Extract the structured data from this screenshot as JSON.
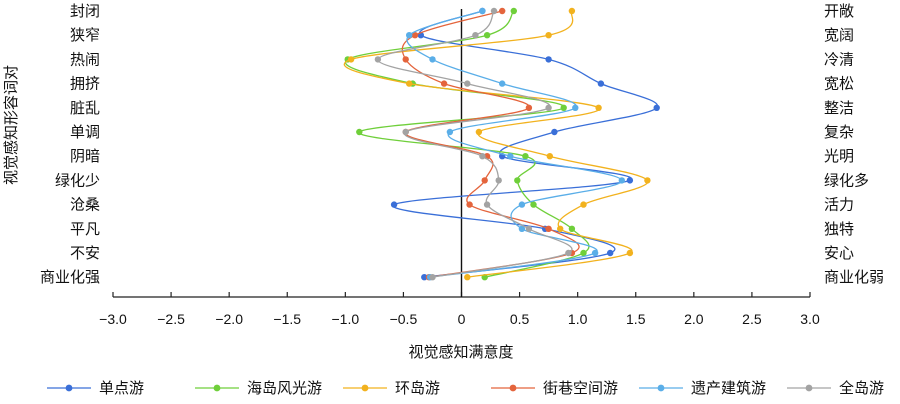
{
  "chart_data": {
    "type": "line",
    "xlabel": "视觉感知满意度",
    "ylabel": "视觉感知形容词对",
    "xlim": [
      -3.0,
      3.0
    ],
    "xticks": [
      "−3.0",
      "−2.5",
      "−2.0",
      "−1.5",
      "−1.0",
      "−0.5",
      "0",
      "0.5",
      "1.0",
      "1.5",
      "2.0",
      "2.5",
      "3.0"
    ],
    "xtick_values": [
      -3.0,
      -2.5,
      -2.0,
      -1.5,
      -1.0,
      -0.5,
      0,
      0.5,
      1.0,
      1.5,
      2.0,
      2.5,
      3.0
    ],
    "left_labels": [
      "封闭",
      "狭窄",
      "热闹",
      "拥挤",
      "脏乱",
      "单调",
      "阴暗",
      "绿化少",
      "沧桑",
      "平凡",
      "不安",
      "商业化强"
    ],
    "right_labels": [
      "开敞",
      "宽阔",
      "冷清",
      "宽松",
      "整洁",
      "复杂",
      "光明",
      "绿化多",
      "活力",
      "独特",
      "安心",
      "商业化弱"
    ],
    "legend_position": "bottom",
    "grid": false,
    "series": [
      {
        "name": "单点游",
        "color": "#3a6fd8",
        "values": [
          0.18,
          -0.35,
          0.75,
          1.2,
          1.68,
          0.8,
          0.35,
          1.45,
          -0.58,
          0.72,
          1.28,
          -0.32
        ]
      },
      {
        "name": "海岛风光游",
        "color": "#6fcf3a",
        "values": [
          0.45,
          0.22,
          -0.98,
          -0.42,
          0.88,
          -0.88,
          0.55,
          0.48,
          0.62,
          0.95,
          1.05,
          0.2
        ]
      },
      {
        "name": "环岛游",
        "color": "#f2b21e",
        "values": [
          0.95,
          0.75,
          -0.95,
          -0.45,
          1.18,
          0.15,
          0.76,
          1.6,
          1.05,
          0.85,
          1.45,
          0.05
        ]
      },
      {
        "name": "街巷空间游",
        "color": "#e4643c",
        "values": [
          0.35,
          -0.4,
          -0.48,
          -0.15,
          0.58,
          -0.48,
          0.22,
          0.2,
          0.07,
          0.75,
          0.95,
          -0.28
        ]
      },
      {
        "name": "遗产建筑游",
        "color": "#5aaee8",
        "values": [
          0.18,
          -0.45,
          -0.25,
          0.35,
          0.98,
          -0.1,
          0.42,
          1.38,
          0.52,
          0.52,
          1.15,
          -0.27
        ]
      },
      {
        "name": "全岛游",
        "color": "#a3a3a3",
        "values": [
          0.28,
          0.12,
          -0.72,
          0.05,
          0.75,
          -0.48,
          0.18,
          0.32,
          0.22,
          0.58,
          0.92,
          -0.25
        ]
      }
    ]
  }
}
